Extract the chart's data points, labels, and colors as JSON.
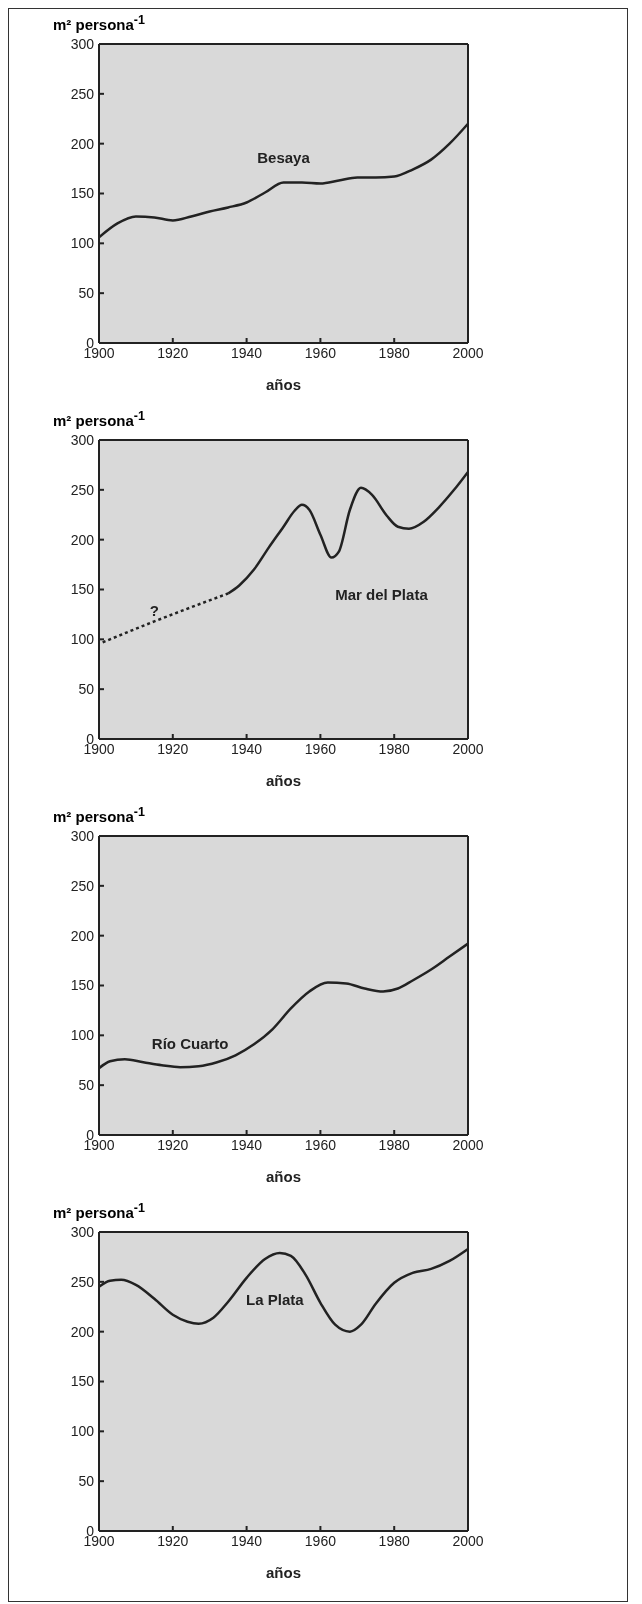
{
  "chart_data": [
    {
      "type": "line",
      "ylabel": "m² persona$^{-1}$",
      "xlabel": "años",
      "xlim": [
        1900,
        2000
      ],
      "xticks": [
        1900,
        1920,
        1940,
        1960,
        1980,
        2000
      ],
      "ylim": [
        0,
        300
      ],
      "yticks": [
        0,
        50,
        100,
        150,
        200,
        250,
        300
      ],
      "legend": false,
      "line_style": "solid",
      "marker": "none",
      "series": [
        {
          "name": "Besaya",
          "color": "#222222",
          "x": [
            1900,
            1905,
            1910,
            1915,
            1920,
            1925,
            1930,
            1935,
            1940,
            1945,
            1950,
            1955,
            1960,
            1965,
            1970,
            1975,
            1980,
            1985,
            1990,
            1995,
            2000
          ],
          "values": [
            106,
            120,
            127,
            126,
            123,
            127,
            132,
            136,
            141,
            151,
            161,
            161,
            160,
            163,
            166,
            166,
            167,
            174,
            184,
            200,
            220
          ]
        }
      ]
    },
    {
      "type": "line",
      "ylabel": "m² persona$^{-1}$",
      "xlabel": "años",
      "xlim": [
        1900,
        2000
      ],
      "xticks": [
        1900,
        1920,
        1940,
        1960,
        1980,
        2000
      ],
      "ylim": [
        0,
        300
      ],
      "yticks": [
        0,
        50,
        100,
        150,
        200,
        250,
        300
      ],
      "legend": false,
      "line_style": "solid",
      "marker": "none",
      "annotations": [
        {
          "text": "?",
          "x": 1915,
          "y": 118
        }
      ],
      "series": [
        {
          "color": "#222222",
          "line_style": "dotted",
          "x": [
            1901,
            1915,
            1935
          ],
          "values": [
            97,
            118,
            146
          ]
        },
        {
          "name": "Mar del Plata",
          "color": "#222222",
          "x": [
            1935,
            1938,
            1942,
            1946,
            1950,
            1953,
            1955,
            1957,
            1960,
            1963,
            1965,
            1968,
            1971,
            1974,
            1978,
            1981,
            1984,
            1988,
            1992,
            1996,
            2000
          ],
          "values": [
            146,
            154,
            170,
            192,
            213,
            229,
            235,
            230,
            205,
            182,
            188,
            230,
            252,
            245,
            224,
            213,
            211,
            218,
            232,
            249,
            268
          ]
        }
      ]
    },
    {
      "type": "line",
      "ylabel": "m² persona$^{-1}$",
      "xlabel": "años",
      "xlim": [
        1900,
        2000
      ],
      "xticks": [
        1900,
        1920,
        1940,
        1960,
        1980,
        2000
      ],
      "ylim": [
        0,
        300
      ],
      "yticks": [
        0,
        50,
        100,
        150,
        200,
        250,
        300
      ],
      "legend": false,
      "line_style": "solid",
      "marker": "none",
      "series": [
        {
          "name": "Río Cuarto",
          "color": "#222222",
          "x": [
            1900,
            1903,
            1907,
            1912,
            1917,
            1922,
            1927,
            1932,
            1937,
            1942,
            1947,
            1952,
            1957,
            1962,
            1967,
            1972,
            1977,
            1981,
            1985,
            1990,
            1995,
            2000
          ],
          "values": [
            67,
            74,
            76,
            73,
            70,
            68,
            69,
            73,
            80,
            91,
            106,
            127,
            144,
            153,
            152,
            147,
            144,
            147,
            155,
            166,
            179,
            192
          ]
        }
      ]
    },
    {
      "type": "line",
      "ylabel": "m² persona$^{-1}$",
      "xlabel": "años",
      "xlim": [
        1900,
        2000
      ],
      "xticks": [
        1900,
        1920,
        1940,
        1960,
        1980,
        2000
      ],
      "ylim": [
        0,
        300
      ],
      "yticks": [
        0,
        50,
        100,
        150,
        200,
        250,
        300
      ],
      "legend": false,
      "line_style": "solid",
      "marker": "none",
      "series": [
        {
          "name": "La Plata",
          "color": "#222222",
          "x": [
            1900,
            1903,
            1906,
            1910,
            1915,
            1920,
            1924,
            1927,
            1931,
            1935,
            1940,
            1945,
            1949,
            1952,
            1956,
            1960,
            1964,
            1968,
            1971,
            1975,
            1980,
            1985,
            1990,
            1995,
            2000
          ],
          "values": [
            245,
            251,
            252,
            247,
            233,
            217,
            210,
            208,
            214,
            230,
            254,
            273,
            279,
            276,
            257,
            229,
            207,
            200,
            207,
            228,
            249,
            259,
            263,
            271,
            283
          ]
        }
      ]
    }
  ]
}
